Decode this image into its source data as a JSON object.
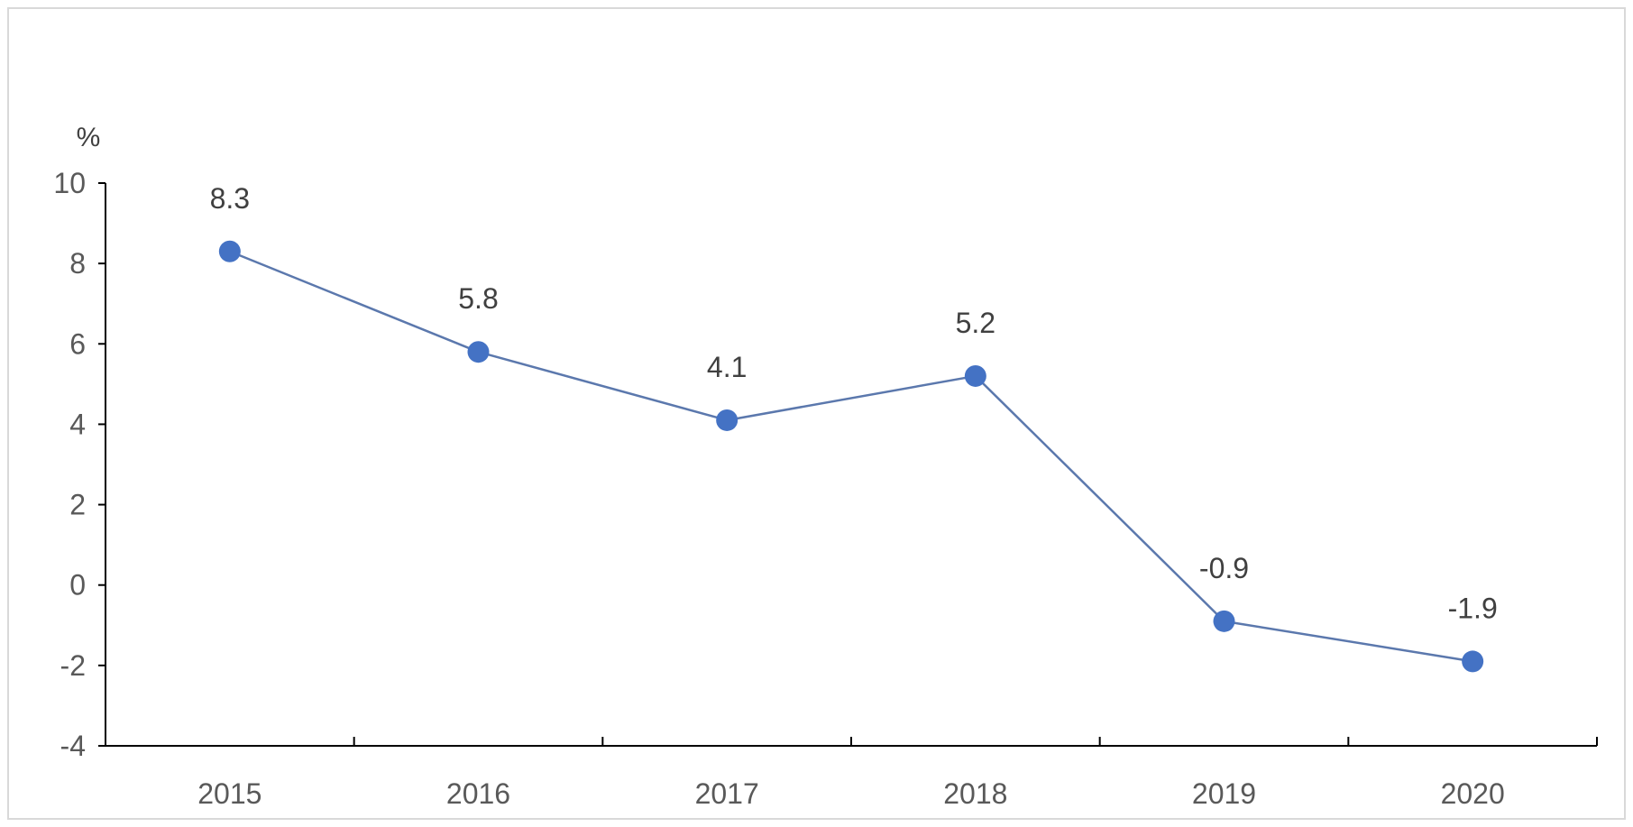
{
  "chart_data": {
    "type": "line",
    "categories": [
      "2015",
      "2016",
      "2017",
      "2018",
      "2019",
      "2020"
    ],
    "series": [
      {
        "values": [
          8.3,
          5.8,
          4.1,
          5.2,
          -0.9,
          -1.9
        ],
        "data_labels": [
          "8.3",
          "5.8",
          "4.1",
          "5.2",
          "-0.9",
          "-1.9"
        ],
        "color": "#4472c4"
      }
    ],
    "y_unit_label": "%",
    "ylim": [
      -4,
      10
    ],
    "y_ticks": [
      10,
      8,
      6,
      4,
      2,
      0,
      -2,
      -4
    ],
    "y_tick_labels": [
      "10",
      "8",
      "6",
      "4",
      "2",
      "0",
      "-2",
      "-4"
    ],
    "grid": false,
    "legend": "none",
    "axis_color": "#000000",
    "tick_label_color": "#595959",
    "data_label_color": "#404040"
  }
}
